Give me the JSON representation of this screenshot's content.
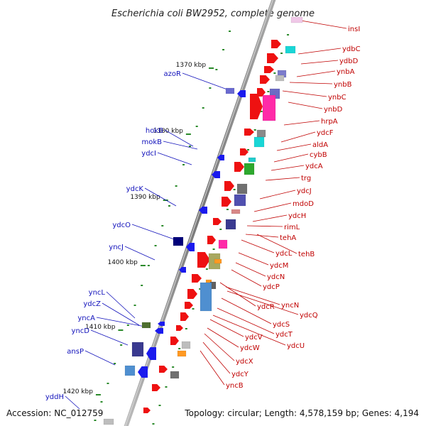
{
  "title": "Escherichia coli BW2952, complete genome",
  "accession": "Accession: NC_012759",
  "topology": "Topology: circular; Length: 4,578,159 bp; Genes: 4,194",
  "ticks": [
    "1370 kbp",
    "1380 kbp",
    "1390 kbp",
    "1400 kbp",
    "1410 kbp",
    "1420 kbp"
  ],
  "genes_forward": [
    "insI",
    "ydbC",
    "ydbD",
    "ynbA",
    "ynbB",
    "ynbC",
    "ynbD",
    "hrpA",
    "ydcF",
    "aldA",
    "cybB",
    "ydcA",
    "trg",
    "ydcJ",
    "mdoD",
    "ydcH",
    "rimL",
    "tehA",
    "ydcL",
    "tehB",
    "ydcM",
    "ydcN",
    "ydcP",
    "ydcR",
    "yncN",
    "ydcQ",
    "ydcS",
    "ydcT",
    "ydcU",
    "ydcV",
    "ydcW",
    "ydcX",
    "ydcY",
    "yncB"
  ],
  "genes_reverse": [
    "azoR",
    "hokB",
    "mokB",
    "ydcI",
    "ydcK",
    "ydcO",
    "yncJ",
    "yncL",
    "ydcZ",
    "yncA",
    "yncD",
    "ansP",
    "yddH"
  ],
  "colors": {
    "axis": "#8c8c8c",
    "forward_label": "#c00000",
    "reverse_label": "#1111bb",
    "tick": "#2a8a2a",
    "forward_gene": "#ee1111",
    "reverse_gene": "#1a1aee"
  }
}
